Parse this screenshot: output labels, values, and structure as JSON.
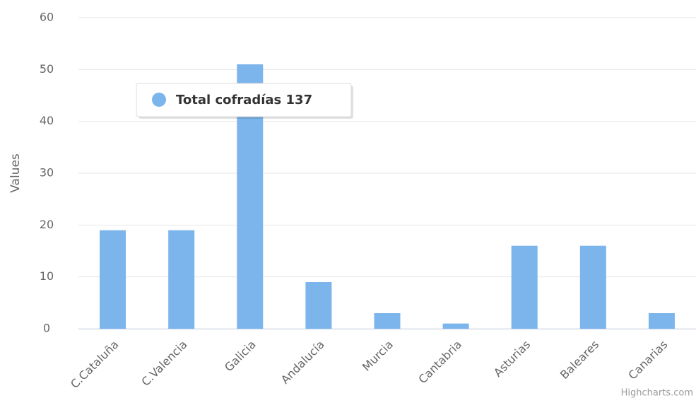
{
  "chart_data": {
    "type": "bar",
    "y_axis_label": "Values",
    "categories": [
      "C.Cataluña",
      "C.Valencia",
      "Galicia",
      "Andalucía",
      "Murcia",
      "Cantabria",
      "Asturias",
      "Baleares",
      "Canarias"
    ],
    "series": [
      {
        "name": "Total cofradías",
        "color": "#7cb5ec",
        "values": [
          19,
          19,
          51,
          9,
          3,
          1,
          16,
          16,
          3
        ]
      }
    ],
    "tooltip_value": 137,
    "ylim": [
      0,
      60
    ],
    "yticks": [
      0,
      10,
      20,
      30,
      40,
      50,
      60
    ],
    "grid": true,
    "credits": "Highcharts.com"
  }
}
